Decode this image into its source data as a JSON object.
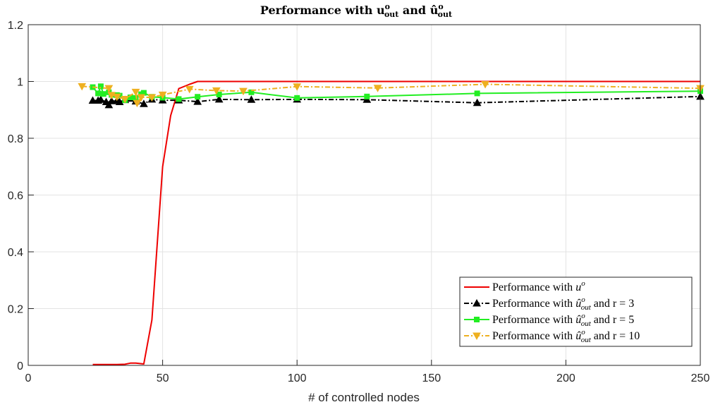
{
  "chart_data": {
    "type": "line",
    "title": "Performance with u^o_out and û^o_out",
    "title_parts": {
      "prefix": "Performance with ",
      "base1": "u",
      "sup1": "o",
      "sub1": "out",
      "middle": " and ",
      "base2": "û",
      "sup2": "o",
      "sub2": "out"
    },
    "xlabel": "# of controlled nodes",
    "ylabel": "",
    "xlim": [
      0,
      250
    ],
    "ylim": [
      0,
      1.2
    ],
    "xticks": [
      0,
      50,
      100,
      150,
      200,
      250
    ],
    "yticks": [
      0,
      0.2,
      0.4,
      0.6,
      0.8,
      1,
      1.2
    ],
    "xtick_labels": [
      "0",
      "50",
      "100",
      "150",
      "200",
      "250"
    ],
    "ytick_labels": [
      "0",
      "0.2",
      "0.4",
      "0.6",
      "0.8",
      "1",
      "1.2"
    ],
    "grid": true,
    "legend_position": "bottom-right",
    "series": [
      {
        "name": "Performance with u^o",
        "legend": {
          "text": "Performance with ",
          "base": "u",
          "sup": "o",
          "sub": "",
          "tail": ""
        },
        "color": "#ee0000",
        "dash": "",
        "marker": "none",
        "x": [
          24,
          27,
          30,
          33,
          36,
          38,
          40,
          43,
          46,
          50,
          53,
          56,
          60,
          63,
          66,
          70,
          83,
          100,
          126,
          167,
          250
        ],
        "y": [
          0.003,
          0.003,
          0.003,
          0.003,
          0.004,
          0.008,
          0.008,
          0.005,
          0.16,
          0.7,
          0.88,
          0.975,
          0.99,
          1.0,
          1.0,
          1.0,
          1.0,
          1.0,
          1.0,
          1.0,
          1.0
        ]
      },
      {
        "name": "Performance with û^o_out and r = 3",
        "legend": {
          "text": "Performance with ",
          "base": "û",
          "sup": "o",
          "sub": "out",
          "tail": " and r = 3"
        },
        "color": "#000000",
        "dash": "7,3,2,3",
        "marker": "triangle-up",
        "x": [
          24,
          26,
          27,
          29,
          30,
          31,
          33,
          34,
          36,
          38,
          40,
          43,
          46,
          50,
          56,
          63,
          71,
          83,
          100,
          126,
          167,
          250
        ],
        "y": [
          0.933,
          0.933,
          0.936,
          0.928,
          0.917,
          0.931,
          0.932,
          0.928,
          0.935,
          0.94,
          0.93,
          0.921,
          0.937,
          0.934,
          0.934,
          0.929,
          0.937,
          0.936,
          0.937,
          0.936,
          0.925,
          0.947
        ]
      },
      {
        "name": "Performance with û^o_out and r = 5",
        "legend": {
          "text": "Performance with ",
          "base": "û",
          "sup": "o",
          "sub": "out",
          "tail": " and r = 5"
        },
        "color": "#22ee22",
        "dash": "",
        "marker": "square",
        "x": [
          24,
          26,
          27,
          28,
          30,
          31,
          33,
          34,
          36,
          38,
          40,
          42,
          43,
          46,
          50,
          56,
          63,
          71,
          83,
          100,
          126,
          167,
          250
        ],
        "y": [
          0.98,
          0.958,
          0.983,
          0.956,
          0.962,
          0.953,
          0.952,
          0.95,
          0.934,
          0.944,
          0.942,
          0.955,
          0.96,
          0.946,
          0.943,
          0.938,
          0.946,
          0.954,
          0.962,
          0.942,
          0.947,
          0.958,
          0.966
        ]
      },
      {
        "name": "Performance with û^o_out and r = 10",
        "legend": {
          "text": "Performance with ",
          "base": "û",
          "sup": "o",
          "sub": "out",
          "tail": " and r = 10"
        },
        "color": "#eeb020",
        "dash": "7,3,2,3",
        "marker": "triangle-down",
        "x": [
          20,
          30,
          31,
          33,
          36,
          40,
          40.5,
          42,
          46,
          50,
          60,
          70,
          80,
          100,
          130,
          170,
          250
        ],
        "y": [
          0.983,
          0.976,
          0.952,
          0.946,
          0.938,
          0.963,
          0.924,
          0.944,
          0.944,
          0.953,
          0.973,
          0.968,
          0.966,
          0.982,
          0.977,
          0.99,
          0.976
        ]
      }
    ]
  }
}
